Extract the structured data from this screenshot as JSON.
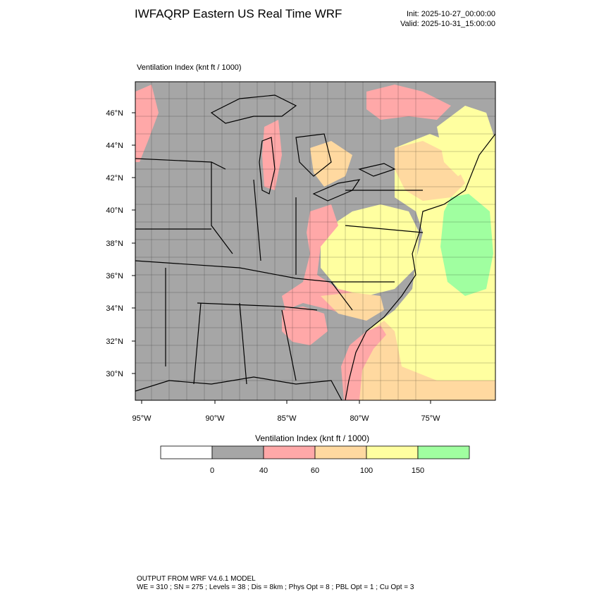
{
  "header": {
    "title": "IWFAQRP Eastern US Real Time WRF",
    "init": "Init: 2025-10-27_00:00:00",
    "valid": "Valid: 2025-10-31_15:00:00"
  },
  "map": {
    "field_label": "Ventilation Index   (knt ft / 1000)",
    "lat_labels": [
      "46°N",
      "44°N",
      "42°N",
      "40°N",
      "38°N",
      "36°N",
      "34°N",
      "32°N",
      "30°N"
    ],
    "lon_labels": [
      "95°W",
      "90°W",
      "85°W",
      "80°W",
      "75°W"
    ]
  },
  "colorbar": {
    "title": "Ventilation Index  (knt ft / 1000)",
    "bins": [
      {
        "color": "#ffffff"
      },
      {
        "color": "#a6a6a6"
      },
      {
        "color": "#ffa8a8"
      },
      {
        "color": "#ffd9a0"
      },
      {
        "color": "#ffffa0"
      },
      {
        "color": "#a0ffa0"
      }
    ],
    "tick_labels": [
      "0",
      "40",
      "60",
      "100",
      "150"
    ]
  },
  "footer": {
    "line1": "OUTPUT FROM WRF V4.6.1 MODEL",
    "line2": "WE = 310 ; SN = 275 ; Levels = 38 ; Dis = 8km ; Phys Opt = 8 ; PBL Opt = 1 ; Cu Opt = 3"
  },
  "colors": {
    "gray": "#a6a6a6",
    "pink": "#ffa8a8",
    "peach": "#ffd9a0",
    "yellow": "#ffffa0",
    "green": "#a0ffa0"
  }
}
